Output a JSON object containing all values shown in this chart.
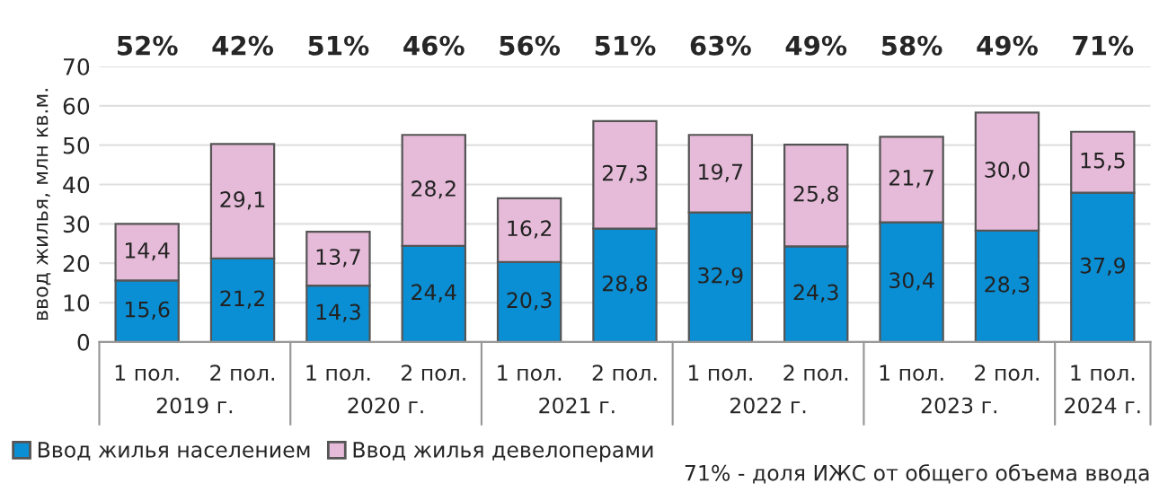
{
  "chart_data": {
    "type": "bar",
    "stacked": true,
    "ylabel": "ввод жилья, млн кв.м.",
    "categories": [
      "1 пол.",
      "2 пол.",
      "1 пол.",
      "2 пол.",
      "1 пол.",
      "2 пол.",
      "1 пол.",
      "2 пол.",
      "1 пол.",
      "2 пол.",
      "1 пол."
    ],
    "series": [
      {
        "name": "Ввод жилья населением",
        "color": "#0b8fd4",
        "values": [
          15.6,
          21.2,
          14.3,
          24.4,
          20.3,
          28.8,
          32.9,
          24.3,
          30.4,
          28.3,
          37.9
        ],
        "value_labels": [
          "15,6",
          "21,2",
          "14,3",
          "24,4",
          "20,3",
          "28,8",
          "32,9",
          "24,3",
          "30,4",
          "28,3",
          "37,9"
        ]
      },
      {
        "name": "Ввод жилья девелоперами",
        "color": "#e6bbd9",
        "values": [
          14.4,
          29.1,
          13.7,
          28.2,
          16.2,
          27.3,
          19.7,
          25.8,
          21.7,
          30.0,
          15.5
        ],
        "value_labels": [
          "14,4",
          "29,1",
          "13,7",
          "28,2",
          "16,2",
          "27,3",
          "19,7",
          "25,8",
          "21,7",
          "30,0",
          "15,5"
        ]
      }
    ],
    "annotations": [
      "52%",
      "42%",
      "51%",
      "46%",
      "56%",
      "51%",
      "63%",
      "49%",
      "58%",
      "49%",
      "71%",
      "2019 г.",
      "2020 г.",
      "2021 г.",
      "2022 г.",
      "2023 г.",
      "2024 г.",
      "71% - доля ИЖС от общего объема ввода"
    ],
    "ylim": [
      0,
      70
    ],
    "yticks": [
      0,
      10,
      20,
      30,
      40,
      50,
      60,
      70
    ],
    "grid": "y",
    "legend": "bottom"
  }
}
